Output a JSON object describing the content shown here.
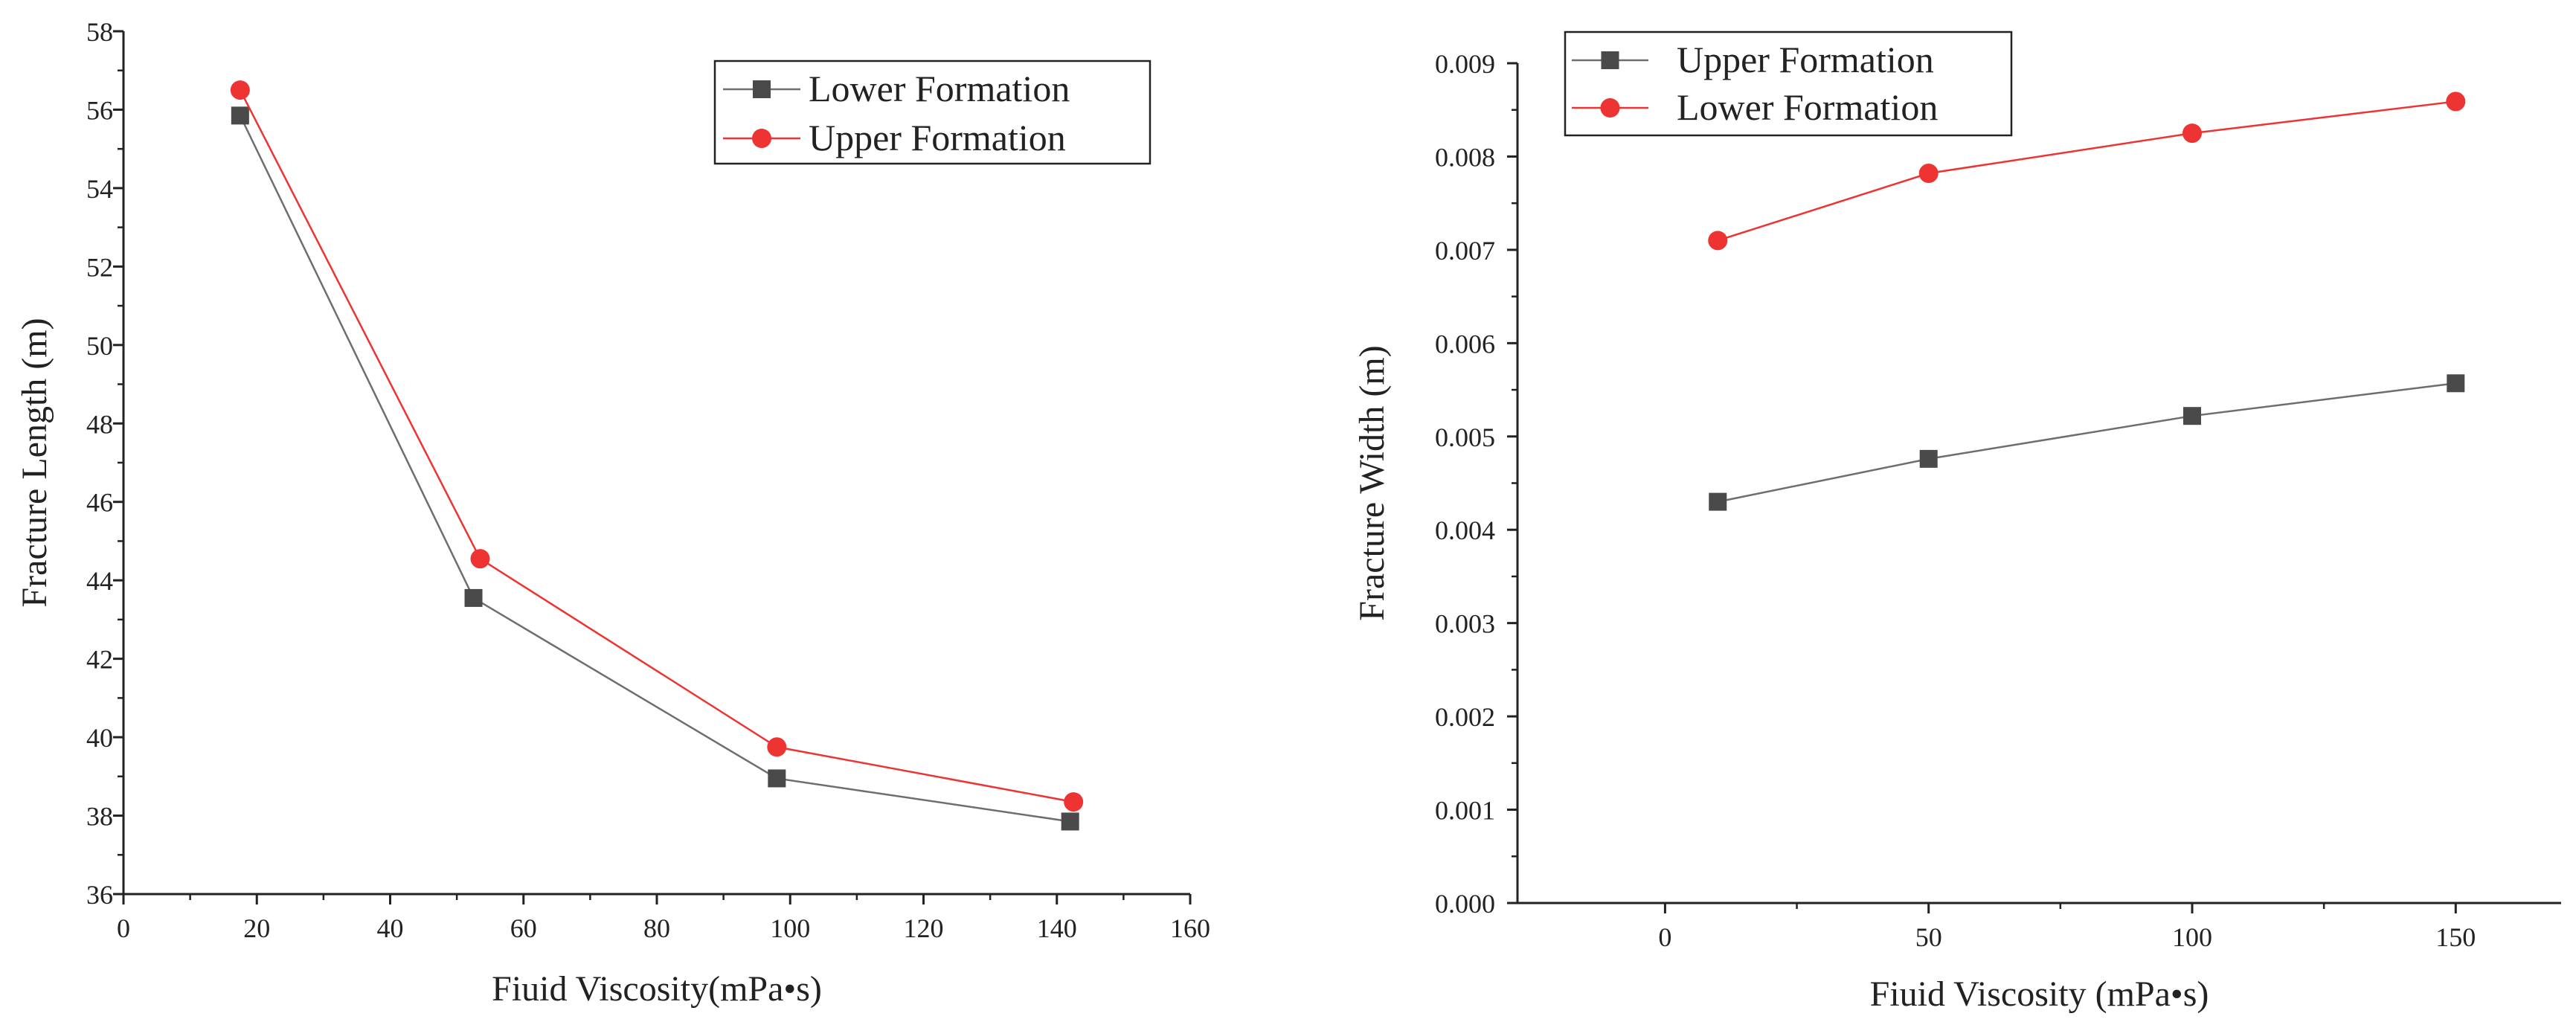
{
  "chart_data": [
    {
      "type": "line",
      "xlabel": "Fiuid Viscosity(mPa•s)",
      "ylabel": "Fracture Length (m)",
      "xlim": [
        0,
        160
      ],
      "ylim": [
        36,
        58
      ],
      "xticks": [
        0,
        20,
        40,
        60,
        80,
        100,
        120,
        140,
        160
      ],
      "yticks": [
        36,
        38,
        40,
        42,
        44,
        46,
        48,
        50,
        52,
        54,
        56,
        58
      ],
      "xtick_labels": [
        "0",
        "20",
        "40",
        "60",
        "80",
        "100",
        "120",
        "140",
        "160"
      ],
      "ytick_labels": [
        "36",
        "38",
        "40",
        "42",
        "44",
        "46",
        "48",
        "50",
        "52",
        "54",
        "56",
        "58"
      ],
      "legend_position": "top-right",
      "series": [
        {
          "name": "Lower Formation",
          "marker": "square",
          "color": "#4a4a4a",
          "line_color": "#6e6e6e",
          "x": [
            17.5,
            52.5,
            98,
            142
          ],
          "y": [
            55.85,
            43.55,
            38.95,
            37.85
          ]
        },
        {
          "name": "Upper Formation",
          "marker": "circle",
          "color": "#ee3333",
          "line_color": "#ee3333",
          "x": [
            17.5,
            53.5,
            98,
            142.5
          ],
          "y": [
            56.5,
            44.55,
            39.75,
            38.35
          ]
        }
      ]
    },
    {
      "type": "line",
      "xlabel": "Fiuid Viscosity (mPa•s)",
      "ylabel": "Fracture Width (m)",
      "xlim": [
        -28,
        170
      ],
      "ylim": [
        0,
        0.009
      ],
      "xticks": [
        0,
        50,
        100,
        150
      ],
      "yticks": [
        0,
        0.001,
        0.002,
        0.003,
        0.004,
        0.005,
        0.006,
        0.007,
        0.008,
        0.009
      ],
      "xtick_labels": [
        "0",
        "50",
        "100",
        "150"
      ],
      "ytick_labels": [
        "0.000",
        "0.001",
        "0.002",
        "0.003",
        "0.004",
        "0.005",
        "0.006",
        "0.007",
        "0.008",
        "0.009"
      ],
      "legend_position": "top-left",
      "series": [
        {
          "name": "Upper Formation",
          "marker": "square",
          "color": "#4a4a4a",
          "line_color": "#6e6e6e",
          "x": [
            10,
            50,
            100,
            150
          ],
          "y": [
            0.0043,
            0.00476,
            0.00522,
            0.00557
          ]
        },
        {
          "name": "Lower Formation",
          "marker": "circle",
          "color": "#ee3333",
          "line_color": "#ee3333",
          "x": [
            10,
            50,
            100,
            150
          ],
          "y": [
            0.0071,
            0.00782,
            0.00825,
            0.00859
          ]
        }
      ]
    }
  ]
}
